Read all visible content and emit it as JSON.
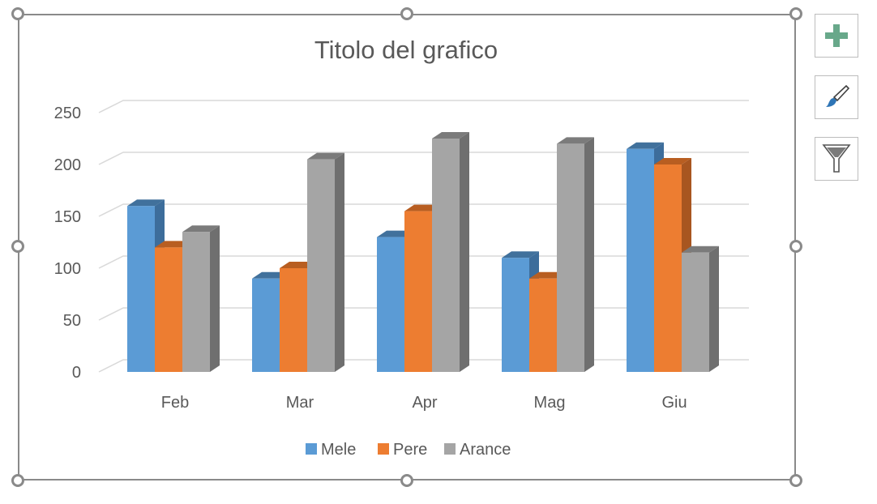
{
  "chart_data": {
    "type": "bar",
    "subtype": "3d-clustered-column",
    "title": "Titolo del grafico",
    "xlabel": "",
    "ylabel": "",
    "categories": [
      "Feb",
      "Mar",
      "Apr",
      "Mag",
      "Giu"
    ],
    "series": [
      {
        "name": "Mele",
        "values": [
          160,
          90,
          130,
          110,
          215
        ],
        "color": "#5b9bd5",
        "side_color": "#3d6d9b",
        "top_color": "#41719c"
      },
      {
        "name": "Pere",
        "values": [
          120,
          100,
          155,
          90,
          200
        ],
        "color": "#ed7d31",
        "side_color": "#a85620",
        "top_color": "#b85e21"
      },
      {
        "name": "Arance",
        "values": [
          135,
          205,
          225,
          220,
          115
        ],
        "color": "#a5a5a5",
        "side_color": "#6f6f6f",
        "top_color": "#7b7b7b"
      }
    ],
    "ylim": [
      0,
      250
    ],
    "yticks": [
      "0",
      "50",
      "100",
      "150",
      "200",
      "250"
    ],
    "grid": true,
    "legend_position": "bottom"
  },
  "side_buttons": {
    "add_icon": "plus-icon",
    "style_icon": "paintbrush-icon",
    "filter_icon": "funnel-icon"
  },
  "colors": {
    "frame": "#8a8a8a",
    "grid": "#d9d9d9",
    "text": "#595959",
    "add_accent": "#68a88a"
  }
}
